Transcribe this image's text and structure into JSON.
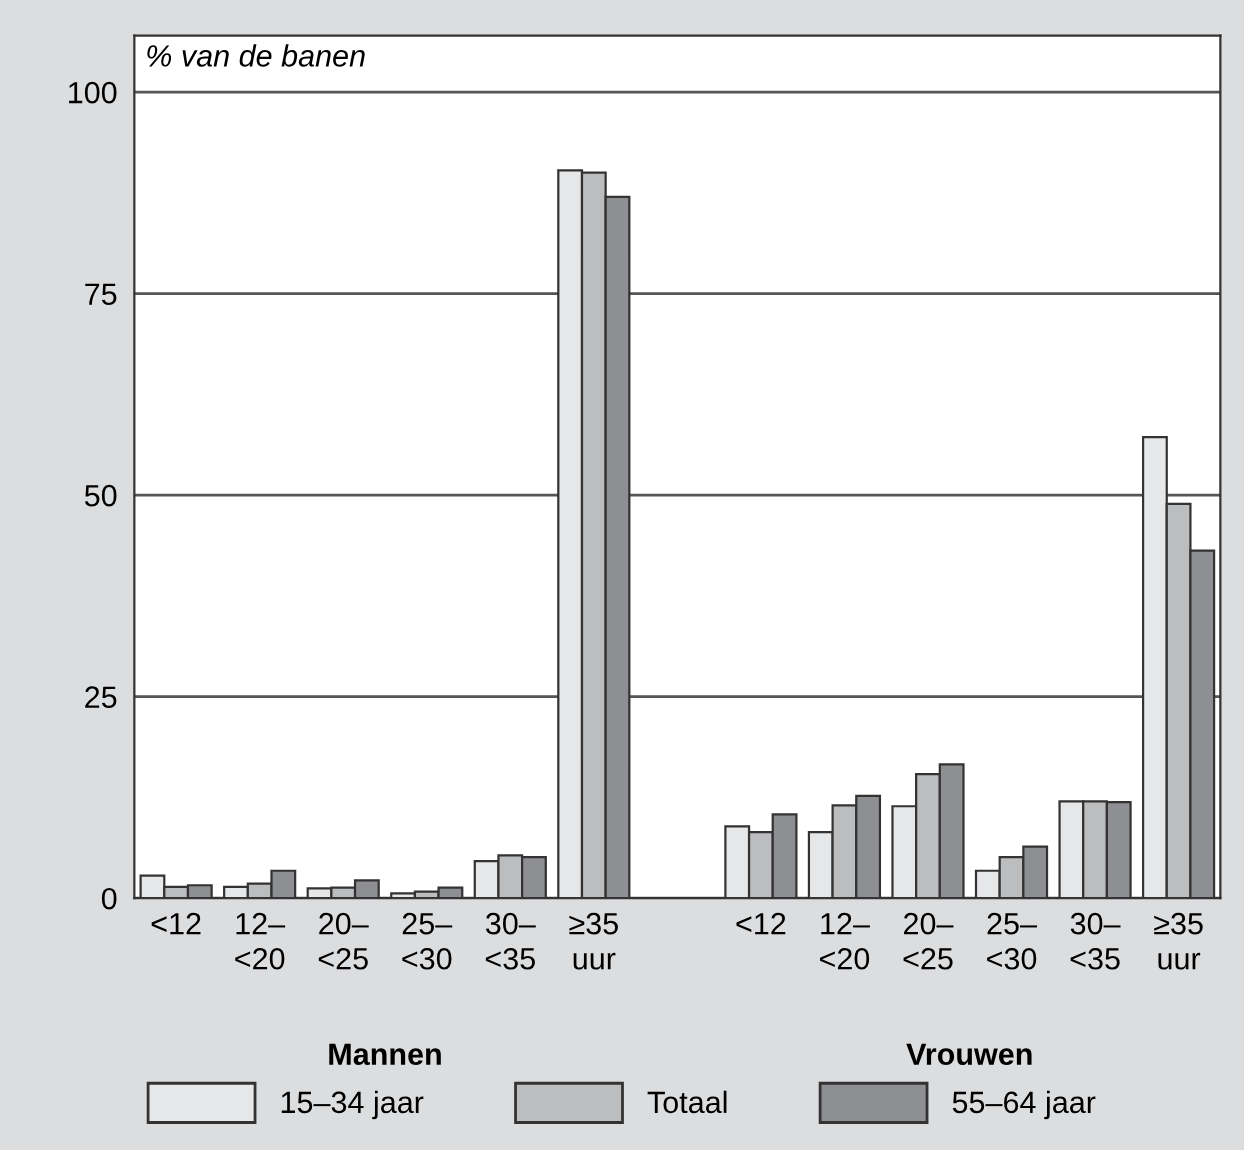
{
  "chart_data": {
    "type": "bar",
    "ylabel": "% van de banen",
    "categories": [
      "<12",
      "12–\n<20",
      "20–\n<25",
      "25–\n<30",
      "30–\n<35",
      "≥35\nuur",
      null,
      "<12",
      "12–\n<20",
      "20–\n<25",
      "25–\n<30",
      "30–\n<35",
      "≥35\nuur"
    ],
    "series": [
      {
        "name": "15–34 jaar",
        "color": "#e6e7e9",
        "values": [
          2.8,
          1.4,
          1.2,
          0.6,
          4.6,
          90.3,
          null,
          8.9,
          8.2,
          11.4,
          3.4,
          12.0,
          57.2
        ]
      },
      {
        "name": "Totaal",
        "color": "#bcbdbf",
        "values": [
          1.4,
          1.8,
          1.3,
          0.8,
          5.3,
          90.0,
          null,
          8.2,
          11.5,
          15.4,
          5.1,
          12.0,
          48.9
        ]
      },
      {
        "name": "55–64 jaar",
        "color": "#8e8f92",
        "values": [
          1.6,
          3.4,
          2.2,
          1.3,
          5.1,
          87.0,
          null,
          10.4,
          12.7,
          16.6,
          6.4,
          11.9,
          43.1
        ]
      }
    ],
    "annotations": [
      "Mannen",
      "Vrouwen"
    ],
    "ylim": [
      0,
      107
    ],
    "yticks": [
      0,
      25,
      50,
      75,
      100
    ],
    "grid": "y",
    "legend": "bottom"
  }
}
